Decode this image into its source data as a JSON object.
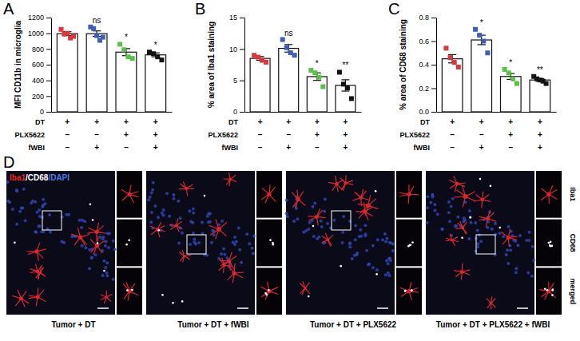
{
  "chart_data": [
    {
      "type": "bar",
      "title": "A",
      "y_label": "MFI CD11b in microglia",
      "categories": [
        null,
        null,
        null,
        null
      ],
      "conditions": [
        {
          "label": "DT",
          "signs": [
            "+",
            "+",
            "+",
            "+"
          ]
        },
        {
          "label": "PLX5622",
          "signs": [
            "–",
            "–",
            "+",
            "+"
          ]
        },
        {
          "label": "fWBI",
          "signs": [
            "–",
            "+",
            "–",
            "+"
          ]
        }
      ],
      "series": [
        {
          "name": "MFI",
          "colors": [
            "#d9363e",
            "#3f5fb5",
            "#5cbf4a",
            "#111111"
          ],
          "marker": "square",
          "values": [
            995,
            995,
            760,
            725
          ],
          "errors": [
            25,
            35,
            45,
            25
          ],
          "points": [
            [
              1050,
              990,
              1000,
              940,
              960
            ],
            [
              1080,
              1060,
              970,
              910,
              950
            ],
            [
              860,
              790,
              700,
              680
            ],
            [
              760,
              740,
              700,
              660
            ]
          ]
        }
      ],
      "annotations": [
        null,
        "ns",
        "*",
        "*"
      ],
      "ylim": [
        0,
        1200
      ],
      "yticks": [
        0,
        200,
        400,
        600,
        800,
        1000,
        1200
      ]
    },
    {
      "type": "bar",
      "title": "B",
      "y_label": "% area of Iba1 staining",
      "categories": [
        null,
        null,
        null,
        null
      ],
      "conditions": [
        {
          "label": "DT",
          "signs": [
            "+",
            "+",
            "+",
            "+"
          ]
        },
        {
          "label": "PLX5622",
          "signs": [
            "–",
            "–",
            "+",
            "+"
          ]
        },
        {
          "label": "fWBI",
          "signs": [
            "–",
            "+",
            "–",
            "+"
          ]
        }
      ],
      "series": [
        {
          "name": "Iba1",
          "colors": [
            "#d9363e",
            "#3f5fb5",
            "#5cbf4a",
            "#111111"
          ],
          "marker": "square",
          "values": [
            8.5,
            10.1,
            5.6,
            4.2
          ],
          "errors": [
            0.3,
            0.6,
            0.6,
            0.9
          ],
          "points": [
            [
              9.0,
              8.7,
              8.2,
              7.9
            ],
            [
              11.5,
              10.2,
              9.4,
              9.0
            ],
            [
              6.6,
              6.2,
              5.5,
              4.0
            ],
            [
              6.3,
              4.4,
              3.8,
              2.1
            ]
          ]
        }
      ],
      "annotations": [
        null,
        "ns",
        "*",
        "**"
      ],
      "ylim": [
        0,
        15
      ],
      "yticks": [
        0,
        5,
        10,
        15
      ]
    },
    {
      "type": "bar",
      "title": "C",
      "y_label": "% area of CD68 staining",
      "categories": [
        null,
        null,
        null,
        null
      ],
      "conditions": [
        {
          "label": "DT",
          "signs": [
            "+",
            "+",
            "+",
            "+"
          ]
        },
        {
          "label": "PLX5622",
          "signs": [
            "–",
            "–",
            "+",
            "+"
          ]
        },
        {
          "label": "fWBI",
          "signs": [
            "–",
            "+",
            "–",
            "+"
          ]
        }
      ],
      "series": [
        {
          "name": "CD68",
          "colors": [
            "#d9363e",
            "#3f5fb5",
            "#5cbf4a",
            "#111111"
          ],
          "marker": "square",
          "values": [
            0.45,
            0.61,
            0.3,
            0.27
          ],
          "errors": [
            0.035,
            0.04,
            0.025,
            0.012
          ],
          "points": [
            [
              0.54,
              0.46,
              0.42,
              0.38
            ],
            [
              0.7,
              0.65,
              0.6,
              0.5
            ],
            [
              0.36,
              0.33,
              0.28,
              0.24
            ],
            [
              0.3,
              0.28,
              0.27,
              0.26,
              0.24
            ]
          ]
        }
      ],
      "annotations": [
        null,
        "*",
        "*",
        "**"
      ],
      "ylim": [
        0,
        0.8
      ],
      "yticks": [
        {
          "value": 0,
          "label": "0.0"
        },
        0.2,
        0.4,
        0.6,
        0.8
      ]
    }
  ],
  "images": {
    "title": "D",
    "stain_labels": [
      {
        "text": "Iba1",
        "color": "#e8262d"
      },
      {
        "text": "/CD68",
        "color": "#ffffff"
      },
      {
        "text": "/DAPI",
        "color": "#4a7ae0"
      }
    ],
    "panels": [
      "Tumor + DT",
      "Tumor + DT + fWBI",
      "Tumor + DT + PLX5622",
      "Tumor + DT + PLX5622 + fWBI"
    ],
    "channel_labels": [
      "Iba1",
      "CD68",
      "merged"
    ]
  }
}
